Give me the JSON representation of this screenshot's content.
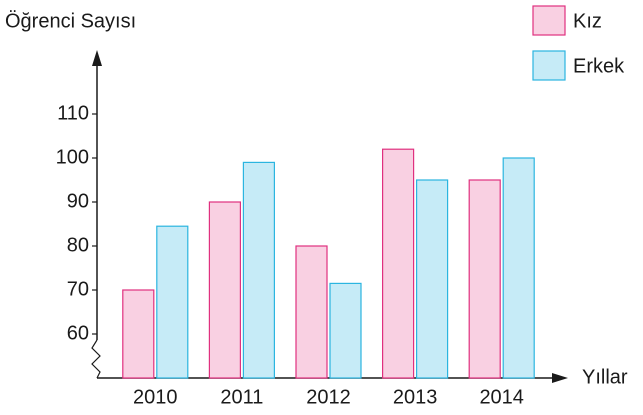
{
  "chart_data": {
    "type": "bar",
    "y_label": "Öğrenci Sayısı",
    "x_label": "Yıllar",
    "categories": [
      "2010",
      "2011",
      "2012",
      "2013",
      "2014"
    ],
    "series": [
      {
        "name": "Kız",
        "color": "#f9d0e2",
        "stroke": "#e0307f",
        "values": [
          70,
          90,
          80,
          102,
          95
        ]
      },
      {
        "name": "Erkek",
        "color": "#c6ebf7",
        "stroke": "#2bb5e0",
        "values": [
          84.5,
          99,
          71.5,
          95,
          100
        ]
      }
    ],
    "ylim": [
      50,
      124
    ],
    "yticks": [
      60,
      70,
      80,
      90,
      100,
      110
    ],
    "legend": "top-right"
  }
}
